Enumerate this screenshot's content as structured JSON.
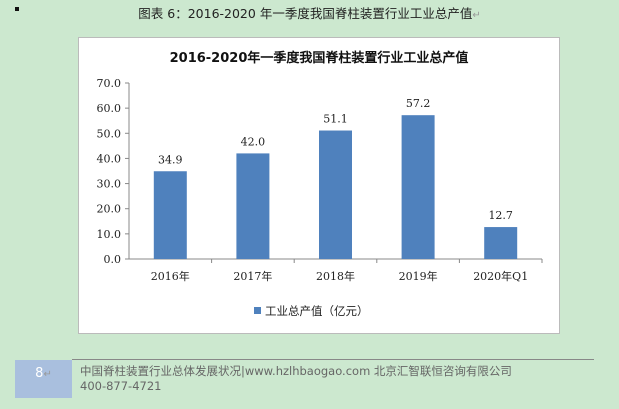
{
  "caption": "图表 6：2016-2020 年一季度我国脊柱装置行业工业总产值",
  "footer": {
    "page_number": "8",
    "line1": "中国脊柱装置行业总体发展状况|www.hzlhbaogao.com 北京汇智联恒咨询有限公司",
    "line2": "400-877-4721"
  },
  "chart_data": {
    "type": "bar",
    "title": "2016-2020年一季度我国脊柱装置行业工业总产值",
    "categories": [
      "2016年",
      "2017年",
      "2018年",
      "2019年",
      "2020年Q1"
    ],
    "series": [
      {
        "name": "工业总产值（亿元）",
        "values": [
          34.9,
          42.0,
          51.1,
          57.2,
          12.7
        ]
      }
    ],
    "ylim": [
      0,
      70
    ],
    "yticks": [
      "0.0",
      "10.0",
      "20.0",
      "30.0",
      "40.0",
      "50.0",
      "60.0",
      "70.0"
    ],
    "grid": false,
    "legend": "bottom",
    "bar_color": "#4f81bd"
  }
}
